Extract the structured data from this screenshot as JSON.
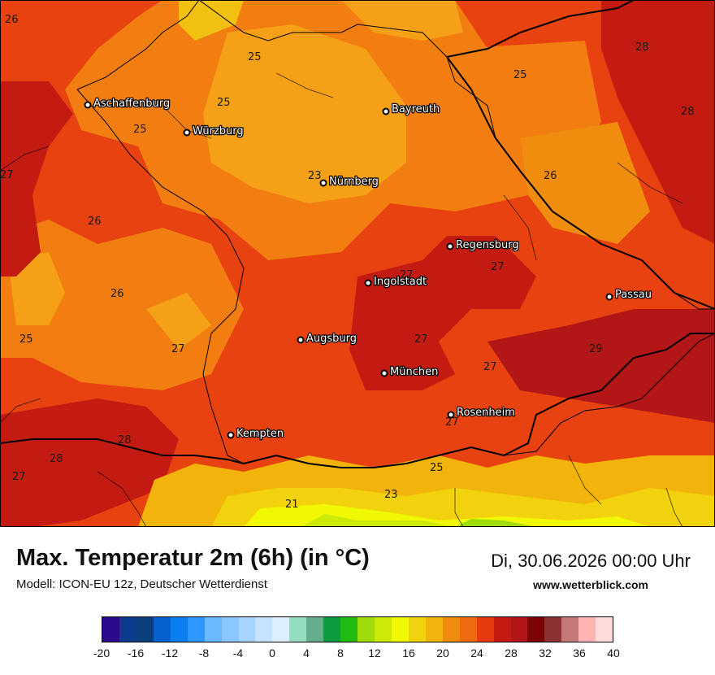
{
  "header": {
    "title": "Max. Temperatur 2m (6h) (in °C)",
    "datetime": "Di, 30.06.2026 00:00 Uhr",
    "model": "Modell: ICON-EU 12z, Deutscher Wetterdienst",
    "website": "www.wetterblick.com"
  },
  "map": {
    "region": "Bayern",
    "unit": "°C",
    "cities": [
      "Aschaffenburg",
      "Würzburg",
      "Bayreuth",
      "Nürnberg",
      "Regensburg",
      "Ingolstadt",
      "Passau",
      "Augsburg",
      "München",
      "Rosenheim",
      "Kempten"
    ],
    "isotherm_values": [
      "26",
      "25",
      "25",
      "25",
      "28",
      "28",
      "25",
      "23",
      "26",
      "26",
      "25",
      "26",
      "27",
      "27",
      "27",
      "27",
      "29",
      "27",
      "28",
      "28",
      "27",
      "25",
      "23",
      "21",
      "27",
      "27"
    ]
  },
  "legend": {
    "tick_labels": [
      "-20",
      "-16",
      "-12",
      "-8",
      "-4",
      "0",
      "4",
      "8",
      "12",
      "16",
      "20",
      "24",
      "28",
      "32",
      "36",
      "40"
    ],
    "colors": [
      "#2d0a8c",
      "#0c3c8e",
      "#0a3f7e",
      "#0561cf",
      "#0a80f0",
      "#2b97ff",
      "#6ab9ff",
      "#8ac6ff",
      "#a6d4ff",
      "#c5e2ff",
      "#ddeeff",
      "#96dcc0",
      "#64ae8e",
      "#0c9c3c",
      "#22bb14",
      "#9edc0a",
      "#ccea06",
      "#f0f802",
      "#f2d20c",
      "#f2b30a",
      "#f08c0e",
      "#ed6a0e",
      "#e63a0c",
      "#c31a12",
      "#b21616",
      "#7c0404",
      "#8c3232",
      "#c47878",
      "#ffb4b4",
      "#ffdcdc"
    ]
  }
}
